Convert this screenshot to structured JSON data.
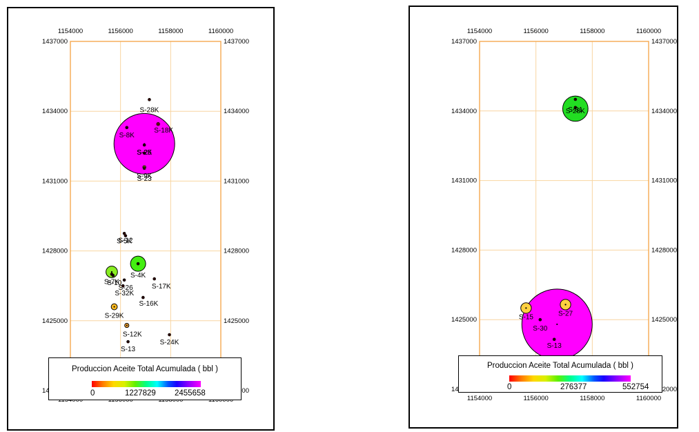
{
  "maps": [
    {
      "x_ticks": [
        "1154000",
        "1156000",
        "1158000",
        "1160000"
      ],
      "y_ticks": [
        "1437000",
        "1434000",
        "1431000",
        "1428000",
        "1425000",
        "1422000"
      ],
      "x_range": [
        1154000,
        1160000
      ],
      "y_range": [
        1422000,
        1437000
      ],
      "border_color": "#f4a94f",
      "wells": [
        {
          "label": "S-28K",
          "x": 1157150,
          "y": 1434500,
          "r": 0.04,
          "color": "#e02000",
          "ldx": 0,
          "ldy": 18
        },
        {
          "label": "S-18K",
          "x": 1157500,
          "y": 1433450,
          "r": 0.05,
          "color": "#e03000",
          "ldx": 8,
          "ldy": 12
        },
        {
          "label": "S-8K",
          "x": 1156250,
          "y": 1433300,
          "r": 0.0,
          "color": "#b00000",
          "ldx": 0,
          "ldy": 14
        },
        {
          "label": "",
          "x": 1156950,
          "y": 1432600,
          "r": 1.0,
          "color": "#ff00ff",
          "ldx": 0,
          "ldy": 0
        },
        {
          "label": "S-2K",
          "x": 1156950,
          "y": 1432550,
          "r": 0.0,
          "color": "#c00000",
          "ldx": 0,
          "ldy": 14
        },
        {
          "label": "S-25",
          "x": 1156950,
          "y": 1432200,
          "r": 0.0,
          "color": "#c00000",
          "ldx": 0,
          "ldy": 2
        },
        {
          "label": "S-9K",
          "x": 1156950,
          "y": 1431600,
          "r": 0.05,
          "color": "#ffd000",
          "ldx": 0,
          "ldy": 16
        },
        {
          "label": "S-23",
          "x": 1156950,
          "y": 1431550,
          "r": 0.04,
          "color": "#ff8000",
          "ldx": 0,
          "ldy": 18
        },
        {
          "label": "S-5K",
          "x": 1156150,
          "y": 1428750,
          "r": 0.03,
          "color": "#e03000",
          "ldx": 0,
          "ldy": 14
        },
        {
          "label": "S-12",
          "x": 1156200,
          "y": 1428650,
          "r": 0.0,
          "color": "#c00000",
          "ldx": 0,
          "ldy": 10
        },
        {
          "label": "",
          "x": 1156700,
          "y": 1427450,
          "r": 0.25,
          "color": "#44ee11",
          "ldx": 0,
          "ldy": 0
        },
        {
          "label": "S-4K",
          "x": 1156700,
          "y": 1427450,
          "r": 0.0,
          "color": "#a00000",
          "ldx": 0,
          "ldy": 20
        },
        {
          "label": "",
          "x": 1155650,
          "y": 1427100,
          "r": 0.19,
          "color": "#88ee22",
          "ldx": 0,
          "ldy": 0
        },
        {
          "label": "S-7K",
          "x": 1155650,
          "y": 1427000,
          "r": 0.0,
          "color": "#a00000",
          "ldx": 0,
          "ldy": 14
        },
        {
          "label": "S-10",
          "x": 1155700,
          "y": 1426950,
          "r": 0.0,
          "color": "#a00000",
          "ldx": 2,
          "ldy": 14
        },
        {
          "label": "S-17K",
          "x": 1157350,
          "y": 1426800,
          "r": 0.03,
          "color": "#e02000",
          "ldx": 10,
          "ldy": 14
        },
        {
          "label": "S-26",
          "x": 1156150,
          "y": 1426750,
          "r": 0.0,
          "color": "#c00000",
          "ldx": 2,
          "ldy": 14
        },
        {
          "label": "S-32K",
          "x": 1156100,
          "y": 1426500,
          "r": 0.03,
          "color": "#e03000",
          "ldx": 2,
          "ldy": 14
        },
        {
          "label": "S-16K",
          "x": 1156900,
          "y": 1426000,
          "r": 0.0,
          "color": "#c00000",
          "ldx": 8,
          "ldy": 12
        },
        {
          "label": "S-29K",
          "x": 1155750,
          "y": 1425600,
          "r": 0.1,
          "color": "#ffbb22",
          "ldx": 0,
          "ldy": 16
        },
        {
          "label": "S-12K",
          "x": 1156250,
          "y": 1424800,
          "r": 0.07,
          "color": "#ffaa33",
          "ldx": 8,
          "ldy": 16
        },
        {
          "label": "S-24K",
          "x": 1157950,
          "y": 1424400,
          "r": 0.03,
          "color": "#e02000",
          "ldx": 0,
          "ldy": 14
        },
        {
          "label": "S-13",
          "x": 1156300,
          "y": 1424100,
          "r": 0.0,
          "color": "#c00000",
          "ldx": 0,
          "ldy": 14
        }
      ],
      "legend": {
        "title": "Produccion Aceite Total Acumulada ( bbl )",
        "min_label": "0",
        "mid_label": "1227829",
        "max_label": "2455658"
      }
    },
    {
      "x_ticks": [
        "1154000",
        "1156000",
        "1158000",
        "1160000"
      ],
      "y_ticks": [
        "1437000",
        "1434000",
        "1431000",
        "1428000",
        "1425000",
        "1422000"
      ],
      "x_range": [
        1154000,
        1160000
      ],
      "y_range": [
        1422000,
        1437000
      ],
      "border_color": "#f4a94f",
      "wells": [
        {
          "label": "",
          "x": 1157400,
          "y": 1434100,
          "r": 0.36,
          "color": "#22dd22",
          "ldx": 0,
          "ldy": 0
        },
        {
          "label": "S-31",
          "x": 1157400,
          "y": 1434500,
          "r": 0.0,
          "color": "#b00000",
          "ldx": 0,
          "ldy": 18
        },
        {
          "label": "S-28K",
          "x": 1157400,
          "y": 1434150,
          "r": 0.0,
          "color": "#b00000",
          "ldx": 0,
          "ldy": 8
        },
        {
          "label": "",
          "x": 1156750,
          "y": 1424800,
          "r": 1.0,
          "color": "#ff00ff",
          "ldx": 0,
          "ldy": 0
        },
        {
          "label": "S-15",
          "x": 1155650,
          "y": 1425500,
          "r": 0.15,
          "color": "#ffd040",
          "ldx": 0,
          "ldy": 16
        },
        {
          "label": "S-27",
          "x": 1157050,
          "y": 1425650,
          "r": 0.15,
          "color": "#ffd040",
          "ldx": 0,
          "ldy": 16
        },
        {
          "label": "S-30",
          "x": 1156150,
          "y": 1425000,
          "r": 0.0,
          "color": "#b00000",
          "ldx": 0,
          "ldy": 16
        },
        {
          "label": "S-13",
          "x": 1156650,
          "y": 1424150,
          "r": 0.03,
          "color": "#e02000",
          "ldx": 0,
          "ldy": 12
        }
      ],
      "legend": {
        "title": "Produccion Aceite Total Acumulada ( bbl )",
        "min_label": "0",
        "mid_label": "276377",
        "max_label": "552754"
      }
    }
  ]
}
